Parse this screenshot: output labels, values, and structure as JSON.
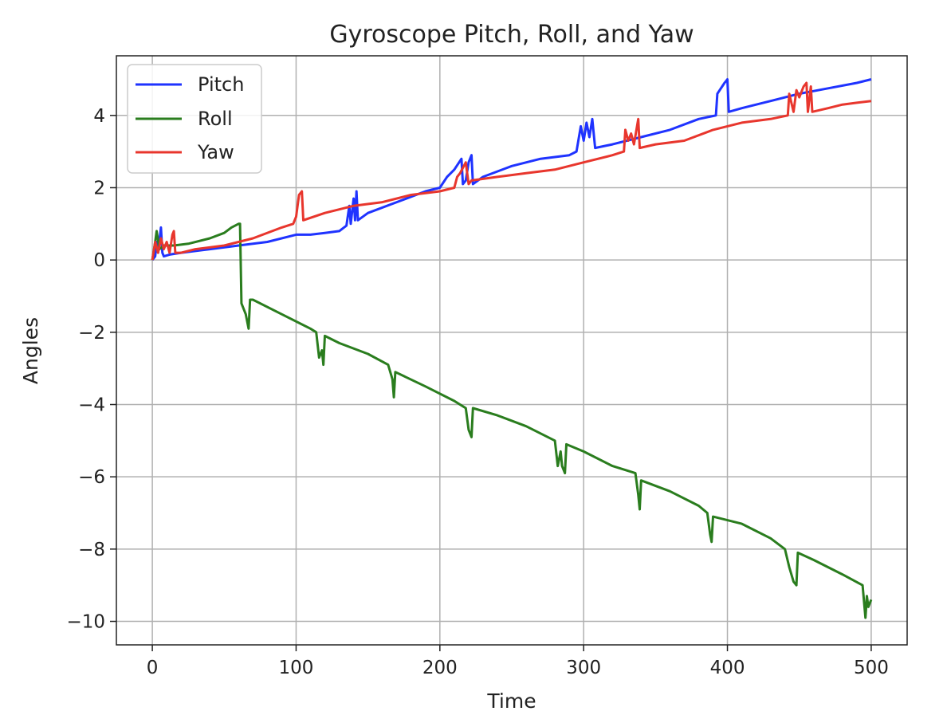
{
  "chart_data": {
    "type": "line",
    "title": "Gyroscope Pitch, Roll, and Yaw",
    "xlabel": "Time",
    "ylabel": "Angles",
    "xlim": [
      -25,
      525
    ],
    "ylim": [
      -10.65,
      5.65
    ],
    "xticks": [
      0,
      100,
      200,
      300,
      400,
      500
    ],
    "yticks": [
      4,
      2,
      0,
      -2,
      -4,
      -6,
      -8,
      -10
    ],
    "ytick_labels": [
      "4",
      "2",
      "0",
      "−2",
      "−4",
      "−6",
      "−8",
      "−10"
    ],
    "grid": true,
    "legend_position": "top-left",
    "series": [
      {
        "name": "Pitch",
        "color": "#1f33ff",
        "points": [
          [
            0,
            0
          ],
          [
            2,
            0.1
          ],
          [
            3,
            0.5
          ],
          [
            4,
            0.2
          ],
          [
            6,
            0.9
          ],
          [
            7,
            0.2
          ],
          [
            8,
            0.1
          ],
          [
            12,
            0.15
          ],
          [
            20,
            0.2
          ],
          [
            40,
            0.3
          ],
          [
            60,
            0.4
          ],
          [
            80,
            0.5
          ],
          [
            100,
            0.7
          ],
          [
            110,
            0.7
          ],
          [
            120,
            0.75
          ],
          [
            130,
            0.8
          ],
          [
            135,
            0.95
          ],
          [
            137,
            1.5
          ],
          [
            138,
            1.0
          ],
          [
            140,
            1.7
          ],
          [
            141,
            1.1
          ],
          [
            142,
            1.9
          ],
          [
            143,
            1.1
          ],
          [
            150,
            1.3
          ],
          [
            170,
            1.6
          ],
          [
            190,
            1.9
          ],
          [
            200,
            2.0
          ],
          [
            205,
            2.3
          ],
          [
            210,
            2.5
          ],
          [
            215,
            2.8
          ],
          [
            216,
            2.1
          ],
          [
            218,
            2.2
          ],
          [
            220,
            2.7
          ],
          [
            222,
            2.9
          ],
          [
            223,
            2.1
          ],
          [
            230,
            2.3
          ],
          [
            250,
            2.6
          ],
          [
            270,
            2.8
          ],
          [
            290,
            2.9
          ],
          [
            295,
            3.0
          ],
          [
            298,
            3.7
          ],
          [
            300,
            3.3
          ],
          [
            302,
            3.8
          ],
          [
            304,
            3.4
          ],
          [
            306,
            3.9
          ],
          [
            308,
            3.1
          ],
          [
            320,
            3.2
          ],
          [
            340,
            3.4
          ],
          [
            360,
            3.6
          ],
          [
            380,
            3.9
          ],
          [
            392,
            4.0
          ],
          [
            393,
            4.6
          ],
          [
            398,
            4.9
          ],
          [
            400,
            5.0
          ],
          [
            401,
            4.1
          ],
          [
            410,
            4.2
          ],
          [
            430,
            4.4
          ],
          [
            450,
            4.6
          ],
          [
            470,
            4.75
          ],
          [
            490,
            4.9
          ],
          [
            500,
            5.0
          ]
        ]
      },
      {
        "name": "Roll",
        "color": "#2a7d1e",
        "points": [
          [
            0,
            0
          ],
          [
            2,
            0.5
          ],
          [
            3,
            0.8
          ],
          [
            5,
            0.3
          ],
          [
            8,
            0.4
          ],
          [
            15,
            0.4
          ],
          [
            25,
            0.45
          ],
          [
            40,
            0.6
          ],
          [
            50,
            0.75
          ],
          [
            55,
            0.9
          ],
          [
            60,
            1.0
          ],
          [
            61,
            1.0
          ],
          [
            62,
            -1.2
          ],
          [
            65,
            -1.5
          ],
          [
            67,
            -1.9
          ],
          [
            68,
            -1.1
          ],
          [
            70,
            -1.1
          ],
          [
            90,
            -1.5
          ],
          [
            110,
            -1.9
          ],
          [
            114,
            -2.0
          ],
          [
            116,
            -2.7
          ],
          [
            118,
            -2.5
          ],
          [
            119,
            -2.9
          ],
          [
            120,
            -2.1
          ],
          [
            130,
            -2.3
          ],
          [
            150,
            -2.6
          ],
          [
            164,
            -2.9
          ],
          [
            167,
            -3.3
          ],
          [
            168,
            -3.8
          ],
          [
            169,
            -3.1
          ],
          [
            190,
            -3.5
          ],
          [
            210,
            -3.9
          ],
          [
            218,
            -4.1
          ],
          [
            220,
            -4.7
          ],
          [
            222,
            -4.9
          ],
          [
            223,
            -4.1
          ],
          [
            240,
            -4.3
          ],
          [
            260,
            -4.6
          ],
          [
            280,
            -5.0
          ],
          [
            282,
            -5.7
          ],
          [
            284,
            -5.3
          ],
          [
            285,
            -5.7
          ],
          [
            287,
            -5.9
          ],
          [
            288,
            -5.1
          ],
          [
            300,
            -5.3
          ],
          [
            320,
            -5.7
          ],
          [
            336,
            -5.9
          ],
          [
            338,
            -6.5
          ],
          [
            339,
            -6.9
          ],
          [
            340,
            -6.1
          ],
          [
            360,
            -6.4
          ],
          [
            380,
            -6.8
          ],
          [
            386,
            -7.0
          ],
          [
            388,
            -7.6
          ],
          [
            389,
            -7.8
          ],
          [
            390,
            -7.1
          ],
          [
            410,
            -7.3
          ],
          [
            430,
            -7.7
          ],
          [
            440,
            -8.0
          ],
          [
            443,
            -8.5
          ],
          [
            446,
            -8.9
          ],
          [
            448,
            -9.0
          ],
          [
            449,
            -8.1
          ],
          [
            460,
            -8.3
          ],
          [
            480,
            -8.7
          ],
          [
            494,
            -9.0
          ],
          [
            496,
            -9.9
          ],
          [
            497,
            -9.3
          ],
          [
            498,
            -9.6
          ],
          [
            500,
            -9.4
          ]
        ]
      },
      {
        "name": "Yaw",
        "color": "#e8362d",
        "points": [
          [
            0,
            0
          ],
          [
            2,
            0.5
          ],
          [
            4,
            0.2
          ],
          [
            6,
            0.6
          ],
          [
            8,
            0.3
          ],
          [
            10,
            0.5
          ],
          [
            12,
            0.2
          ],
          [
            14,
            0.7
          ],
          [
            15,
            0.8
          ],
          [
            16,
            0.2
          ],
          [
            20,
            0.2
          ],
          [
            30,
            0.3
          ],
          [
            50,
            0.4
          ],
          [
            70,
            0.6
          ],
          [
            90,
            0.9
          ],
          [
            98,
            1.0
          ],
          [
            100,
            1.2
          ],
          [
            102,
            1.8
          ],
          [
            104,
            1.9
          ],
          [
            105,
            1.1
          ],
          [
            120,
            1.3
          ],
          [
            140,
            1.5
          ],
          [
            160,
            1.6
          ],
          [
            180,
            1.8
          ],
          [
            200,
            1.9
          ],
          [
            210,
            2.0
          ],
          [
            212,
            2.3
          ],
          [
            214,
            2.4
          ],
          [
            218,
            2.7
          ],
          [
            220,
            2.1
          ],
          [
            222,
            2.2
          ],
          [
            240,
            2.3
          ],
          [
            260,
            2.4
          ],
          [
            280,
            2.5
          ],
          [
            300,
            2.7
          ],
          [
            320,
            2.9
          ],
          [
            328,
            3.0
          ],
          [
            329,
            3.6
          ],
          [
            331,
            3.3
          ],
          [
            333,
            3.5
          ],
          [
            335,
            3.2
          ],
          [
            338,
            3.9
          ],
          [
            339,
            3.1
          ],
          [
            350,
            3.2
          ],
          [
            370,
            3.3
          ],
          [
            390,
            3.6
          ],
          [
            410,
            3.8
          ],
          [
            430,
            3.9
          ],
          [
            442,
            4.0
          ],
          [
            443,
            4.6
          ],
          [
            446,
            4.1
          ],
          [
            448,
            4.7
          ],
          [
            450,
            4.5
          ],
          [
            453,
            4.8
          ],
          [
            455,
            4.9
          ],
          [
            456,
            4.1
          ],
          [
            458,
            4.8
          ],
          [
            459,
            4.1
          ],
          [
            470,
            4.2
          ],
          [
            480,
            4.3
          ],
          [
            490,
            4.35
          ],
          [
            500,
            4.4
          ]
        ]
      }
    ]
  }
}
